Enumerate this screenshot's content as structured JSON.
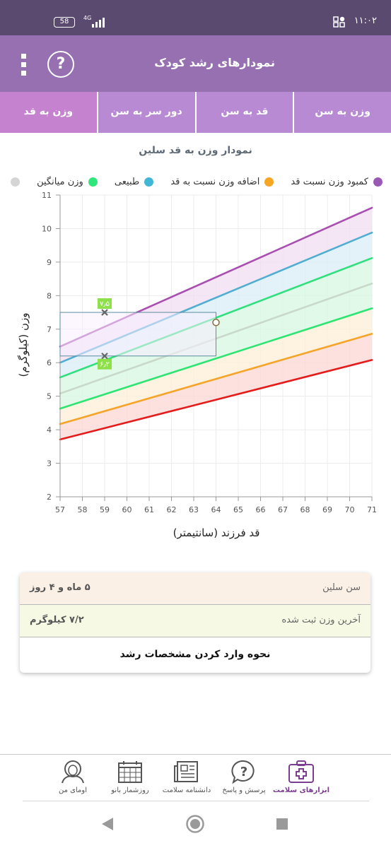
{
  "status_bar": {
    "time": "۱۱:۰۲",
    "battery": "58",
    "network": "4G"
  },
  "app_bar": {
    "title": "نمودارهای رشد کودک",
    "help_icon": "question-circle-icon",
    "menu_icon": "more-vert-icon",
    "help_glyph": "?"
  },
  "tabs": [
    {
      "label": "وزن به سن"
    },
    {
      "label": "قد به سن"
    },
    {
      "label": "دور سر به سن"
    },
    {
      "label": "وزن به قد"
    }
  ],
  "active_tab": 3,
  "chart_title": "نمودار وزن به قد سلین",
  "legend": [
    {
      "label": "کمبود وزن نسبت قد",
      "color": "#9b59b6"
    },
    {
      "label": "اضافه وزن نسبت به قد",
      "color": "#f5a623"
    },
    {
      "label": "طبیعی",
      "color": "#41b6d6"
    },
    {
      "label": "وزن میانگین",
      "color": "#2ee67a"
    },
    {
      "label": "",
      "color": "#d5d5d5"
    }
  ],
  "chart_data": {
    "type": "line",
    "xlabel": "قد فرزند (سانتیمتر)",
    "ylabel": "وزن (کیلوگرم)",
    "xlim": [
      57,
      71
    ],
    "ylim": [
      2,
      11
    ],
    "x_ticks": [
      "57",
      "58",
      "59",
      "60",
      "61",
      "62",
      "63",
      "64",
      "65",
      "66",
      "67",
      "68",
      "69",
      "70",
      "71"
    ],
    "y_ticks": [
      "2",
      "3",
      "4",
      "5",
      "6",
      "7",
      "8",
      "9",
      "10",
      "11"
    ],
    "x": [
      57,
      71
    ],
    "series": [
      {
        "color": "#a84fb0",
        "values": [
          6.48,
          10.62
        ]
      },
      {
        "color": "#52aed0",
        "values": [
          6.0,
          9.88
        ]
      },
      {
        "color": "#2fe07c",
        "values": [
          5.56,
          9.12
        ]
      },
      {
        "color": "#c9d9c9",
        "values": [
          5.08,
          8.36
        ]
      },
      {
        "color": "#2ee472",
        "values": [
          4.63,
          7.62
        ]
      },
      {
        "color": "#f4a52a",
        "values": [
          4.17,
          6.86
        ]
      },
      {
        "color": "#e41c1c",
        "values": [
          3.71,
          6.08
        ]
      }
    ],
    "bands": [
      {
        "color": "#f1e0f3",
        "from": 0,
        "to": 1
      },
      {
        "color": "#dceef7",
        "from": 1,
        "to": 2
      },
      {
        "color": "#d9f7e4",
        "from": 2,
        "to": 4
      },
      {
        "color": "#fdf0d8",
        "from": 4,
        "to": 5
      },
      {
        "color": "#fbdad6",
        "from": 5,
        "to": 6
      }
    ],
    "measurement": {
      "x": 64,
      "y": 7.2
    },
    "range_markers": [
      {
        "x": 59,
        "y": 7.5,
        "label": "۷٫۵"
      },
      {
        "x": 59,
        "y": 6.2,
        "label": "۶٫۲"
      }
    ],
    "range_box": {
      "x_from": 57,
      "x_to": 64,
      "y_low": 6.2,
      "y_high": 7.5
    }
  },
  "info_card": {
    "age_label": "سن سلین",
    "age_value": "۵ ماه و ۴ روز",
    "weight_label": "آخرین وزن ثبت شده",
    "weight_value": "۷/۲ کیلوگرم",
    "guide_label": "نحوه وارد کردن مشخصات رشد"
  },
  "bottom_nav": [
    {
      "label": "ابزارهای سلامت",
      "icon": "health-kit-icon",
      "active": true
    },
    {
      "label": "پرسش و پاسخ",
      "icon": "question-bubble-icon",
      "active": false
    },
    {
      "label": "دانشنامه سلامت",
      "icon": "newspaper-icon",
      "active": false
    },
    {
      "label": "روزشمار بانو",
      "icon": "calendar-icon",
      "active": false
    },
    {
      "label": "اومای من",
      "icon": "user-avatar-icon",
      "active": false
    }
  ],
  "system_nav": {
    "back_icon": "back-triangle-icon",
    "home_icon": "home-circle-icon",
    "recents_icon": "recents-square-icon"
  }
}
